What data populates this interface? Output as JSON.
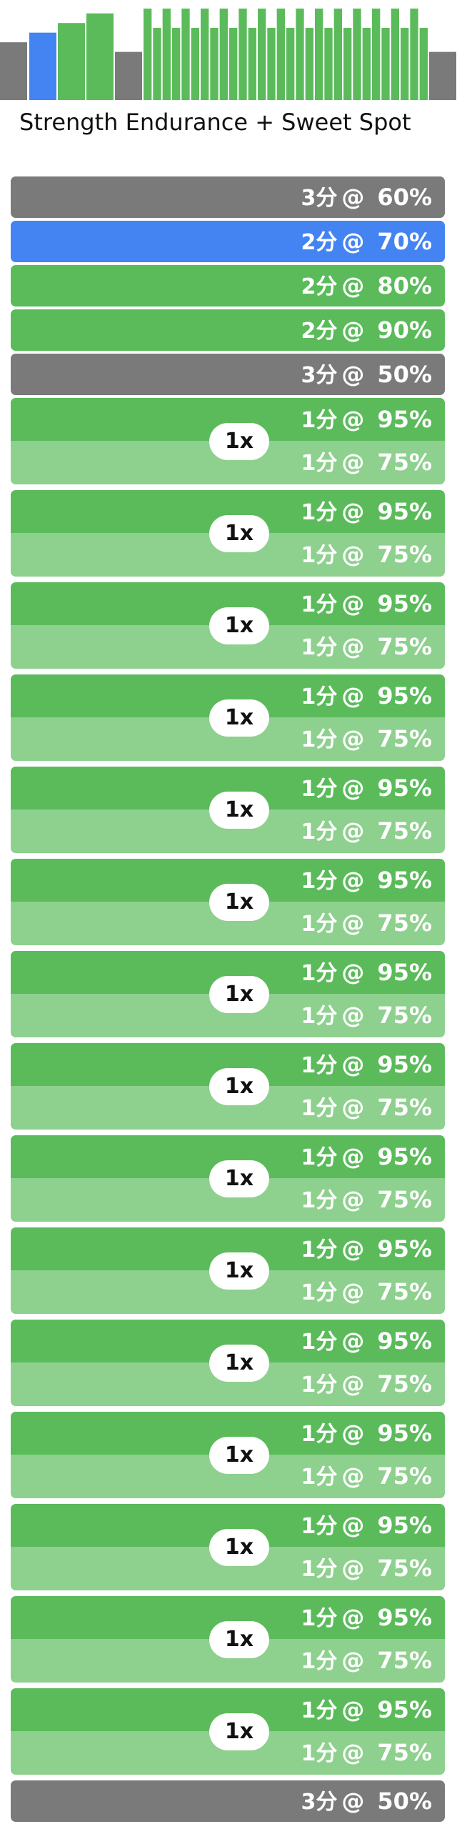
{
  "colors": {
    "gray": "#7a7a7a",
    "blue": "#4484f2",
    "green": "#5bbb5b",
    "light_green": "#8ed08e"
  },
  "title": "Strength Endurance + Sweet Spot",
  "segments": [
    {
      "kind": "step",
      "duration": "3分",
      "at": "@",
      "power": "60%",
      "zone": "gray"
    },
    {
      "kind": "step",
      "duration": "2分",
      "at": "@",
      "power": "70%",
      "zone": "blue"
    },
    {
      "kind": "step",
      "duration": "2分",
      "at": "@",
      "power": "80%",
      "zone": "green"
    },
    {
      "kind": "step",
      "duration": "2分",
      "at": "@",
      "power": "90%",
      "zone": "green"
    },
    {
      "kind": "step",
      "duration": "3分",
      "at": "@",
      "power": "50%",
      "zone": "gray"
    },
    {
      "kind": "interval",
      "repeat": "1x",
      "on": {
        "duration": "1分",
        "at": "@",
        "power": "95%"
      },
      "off": {
        "duration": "1分",
        "at": "@",
        "power": "75%"
      }
    },
    {
      "kind": "interval",
      "repeat": "1x",
      "on": {
        "duration": "1分",
        "at": "@",
        "power": "95%"
      },
      "off": {
        "duration": "1分",
        "at": "@",
        "power": "75%"
      }
    },
    {
      "kind": "interval",
      "repeat": "1x",
      "on": {
        "duration": "1分",
        "at": "@",
        "power": "95%"
      },
      "off": {
        "duration": "1分",
        "at": "@",
        "power": "75%"
      }
    },
    {
      "kind": "interval",
      "repeat": "1x",
      "on": {
        "duration": "1分",
        "at": "@",
        "power": "95%"
      },
      "off": {
        "duration": "1分",
        "at": "@",
        "power": "75%"
      }
    },
    {
      "kind": "interval",
      "repeat": "1x",
      "on": {
        "duration": "1分",
        "at": "@",
        "power": "95%"
      },
      "off": {
        "duration": "1分",
        "at": "@",
        "power": "75%"
      }
    },
    {
      "kind": "interval",
      "repeat": "1x",
      "on": {
        "duration": "1分",
        "at": "@",
        "power": "95%"
      },
      "off": {
        "duration": "1分",
        "at": "@",
        "power": "75%"
      }
    },
    {
      "kind": "interval",
      "repeat": "1x",
      "on": {
        "duration": "1分",
        "at": "@",
        "power": "95%"
      },
      "off": {
        "duration": "1分",
        "at": "@",
        "power": "75%"
      }
    },
    {
      "kind": "interval",
      "repeat": "1x",
      "on": {
        "duration": "1分",
        "at": "@",
        "power": "95%"
      },
      "off": {
        "duration": "1分",
        "at": "@",
        "power": "75%"
      }
    },
    {
      "kind": "interval",
      "repeat": "1x",
      "on": {
        "duration": "1分",
        "at": "@",
        "power": "95%"
      },
      "off": {
        "duration": "1分",
        "at": "@",
        "power": "75%"
      }
    },
    {
      "kind": "interval",
      "repeat": "1x",
      "on": {
        "duration": "1分",
        "at": "@",
        "power": "95%"
      },
      "off": {
        "duration": "1分",
        "at": "@",
        "power": "75%"
      }
    },
    {
      "kind": "interval",
      "repeat": "1x",
      "on": {
        "duration": "1分",
        "at": "@",
        "power": "95%"
      },
      "off": {
        "duration": "1分",
        "at": "@",
        "power": "75%"
      }
    },
    {
      "kind": "interval",
      "repeat": "1x",
      "on": {
        "duration": "1分",
        "at": "@",
        "power": "95%"
      },
      "off": {
        "duration": "1分",
        "at": "@",
        "power": "75%"
      }
    },
    {
      "kind": "interval",
      "repeat": "1x",
      "on": {
        "duration": "1分",
        "at": "@",
        "power": "95%"
      },
      "off": {
        "duration": "1分",
        "at": "@",
        "power": "75%"
      }
    },
    {
      "kind": "interval",
      "repeat": "1x",
      "on": {
        "duration": "1分",
        "at": "@",
        "power": "95%"
      },
      "off": {
        "duration": "1分",
        "at": "@",
        "power": "75%"
      }
    },
    {
      "kind": "interval",
      "repeat": "1x",
      "on": {
        "duration": "1分",
        "at": "@",
        "power": "95%"
      },
      "off": {
        "duration": "1分",
        "at": "@",
        "power": "75%"
      }
    },
    {
      "kind": "step",
      "duration": "3分",
      "at": "@",
      "power": "50%",
      "zone": "gray"
    }
  ],
  "profile": {
    "icon": "workout-profile-bars"
  }
}
